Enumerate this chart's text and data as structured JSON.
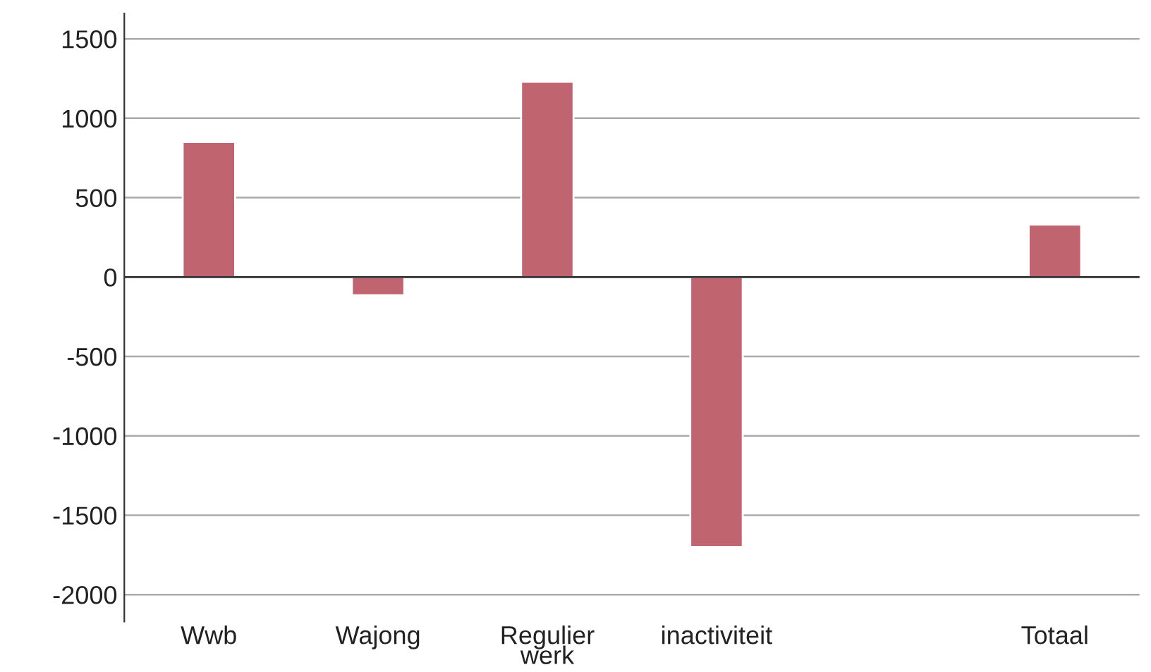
{
  "chart_data": {
    "type": "bar",
    "categories": [
      "Wwb",
      "Wajong",
      "Regulier\nwerk",
      "inactiviteit",
      null,
      "Totaal"
    ],
    "values": [
      850,
      -115,
      1230,
      -1700,
      null,
      330
    ],
    "color": "#c06470",
    "ylim": [
      -2170,
      1660
    ],
    "yticks": [
      -2000,
      -1500,
      -1000,
      -500,
      0,
      500,
      1000,
      1500
    ],
    "grid": "y",
    "legend": false,
    "ref_lines": [
      {
        "axis": "y",
        "value": 0,
        "label": null,
        "color": "#333333"
      }
    ]
  }
}
